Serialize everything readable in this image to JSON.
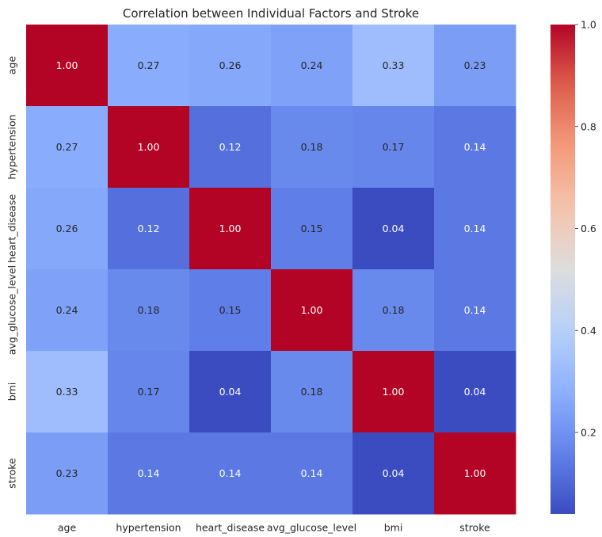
{
  "chart_data": {
    "type": "heatmap",
    "title": "Correlation between Individual Factors and Stroke",
    "x_labels": [
      "age",
      "hypertension",
      "heart_disease",
      "avg_glucose_level",
      "bmi",
      "stroke"
    ],
    "y_labels": [
      "age",
      "hypertension",
      "heart_disease",
      "avg_glucose_level",
      "bmi",
      "stroke"
    ],
    "values": [
      [
        1.0,
        0.27,
        0.26,
        0.24,
        0.33,
        0.23
      ],
      [
        0.27,
        1.0,
        0.12,
        0.18,
        0.17,
        0.14
      ],
      [
        0.26,
        0.12,
        1.0,
        0.15,
        0.04,
        0.14
      ],
      [
        0.24,
        0.18,
        0.15,
        1.0,
        0.18,
        0.14
      ],
      [
        0.33,
        0.17,
        0.04,
        0.18,
        1.0,
        0.04
      ],
      [
        0.23,
        0.14,
        0.14,
        0.14,
        0.04,
        1.0
      ]
    ],
    "annotation_format": "0.00",
    "colormap": "coolwarm",
    "colorbar": {
      "min": 0.04,
      "max": 1.0,
      "ticks": [
        0.2,
        0.4,
        0.6,
        0.8,
        1.0
      ],
      "tick_labels": [
        "0.2",
        "0.4",
        "0.6",
        "0.8",
        "1.0"
      ],
      "position": "right"
    },
    "grid": false
  }
}
